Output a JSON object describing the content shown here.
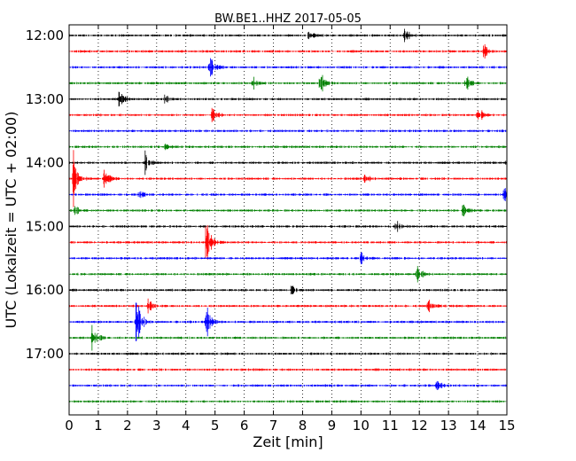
{
  "chart_data": {
    "type": "line",
    "title": "BW.BE1..HHZ 2017-05-05",
    "xlabel": "Zeit  [min]",
    "ylabel": "UTC (Lokalzeit = UTC + 02:00)",
    "xlim": [
      0,
      15
    ],
    "x_ticks": [
      "0",
      "1",
      "2",
      "3",
      "4",
      "5",
      "6",
      "7",
      "8",
      "9",
      "10",
      "11",
      "12",
      "13",
      "14",
      "15"
    ],
    "y_ticks": [
      "12:00",
      "13:00",
      "14:00",
      "15:00",
      "16:00",
      "17:00"
    ],
    "grid": "vertical dotted",
    "series_colors": [
      "#000000",
      "#ff0000",
      "#0000ff",
      "#008000"
    ],
    "traces": [
      {
        "start": "12:00",
        "events": [
          {
            "t": 8.2,
            "amp": 0.35
          },
          {
            "t": 11.5,
            "amp": 0.35
          }
        ]
      },
      {
        "start": "12:15",
        "events": [
          {
            "t": 14.2,
            "amp": 0.45
          }
        ]
      },
      {
        "start": "12:30",
        "events": [
          {
            "t": 4.8,
            "amp": 1.0
          }
        ]
      },
      {
        "start": "12:45",
        "events": [
          {
            "t": 6.3,
            "amp": 0.35
          },
          {
            "t": 8.6,
            "amp": 0.65
          },
          {
            "t": 13.6,
            "amp": 0.55
          }
        ]
      },
      {
        "start": "13:00",
        "events": [
          {
            "t": 1.7,
            "amp": 0.55
          },
          {
            "t": 3.3,
            "amp": 0.3
          }
        ]
      },
      {
        "start": "13:15",
        "events": [
          {
            "t": 4.9,
            "amp": 0.5
          },
          {
            "t": 14.0,
            "amp": 0.6
          }
        ]
      },
      {
        "start": "13:30",
        "events": []
      },
      {
        "start": "13:45",
        "events": [
          {
            "t": 3.3,
            "amp": 0.2
          }
        ]
      },
      {
        "start": "14:00",
        "events": [
          {
            "t": 2.6,
            "amp": 0.65
          },
          {
            "t": 15.0,
            "amp": 0.4
          }
        ]
      },
      {
        "start": "14:15",
        "events": [
          {
            "t": 0.15,
            "amp": 1.1
          },
          {
            "t": 1.2,
            "amp": 0.6
          },
          {
            "t": 10.1,
            "amp": 0.3
          }
        ]
      },
      {
        "start": "14:30",
        "events": [
          {
            "t": 2.4,
            "amp": 0.35
          },
          {
            "t": 14.9,
            "amp": 0.5
          }
        ]
      },
      {
        "start": "14:45",
        "events": [
          {
            "t": 0.2,
            "amp": 0.3
          },
          {
            "t": 13.5,
            "amp": 0.4
          }
        ]
      },
      {
        "start": "15:00",
        "events": [
          {
            "t": 11.2,
            "amp": 0.3
          }
        ]
      },
      {
        "start": "15:15",
        "events": [
          {
            "t": 4.7,
            "amp": 1.5
          }
        ]
      },
      {
        "start": "15:30",
        "events": [
          {
            "t": 10.0,
            "amp": 0.3
          }
        ]
      },
      {
        "start": "15:45",
        "events": [
          {
            "t": 11.9,
            "amp": 0.55
          }
        ]
      },
      {
        "start": "16:00",
        "events": [
          {
            "t": 7.6,
            "amp": 0.3
          }
        ]
      },
      {
        "start": "16:15",
        "events": [
          {
            "t": 2.7,
            "amp": 0.4
          },
          {
            "t": 12.3,
            "amp": 0.35
          }
        ]
      },
      {
        "start": "16:30",
        "events": [
          {
            "t": 2.3,
            "amp": 1.6
          },
          {
            "t": 4.7,
            "amp": 0.9
          }
        ]
      },
      {
        "start": "16:45",
        "events": [
          {
            "t": 0.8,
            "amp": 0.9
          }
        ]
      },
      {
        "start": "17:00",
        "events": []
      },
      {
        "start": "17:15",
        "events": []
      },
      {
        "start": "17:30",
        "events": [
          {
            "t": 12.6,
            "amp": 0.3
          }
        ]
      },
      {
        "start": "17:45",
        "events": []
      }
    ]
  }
}
